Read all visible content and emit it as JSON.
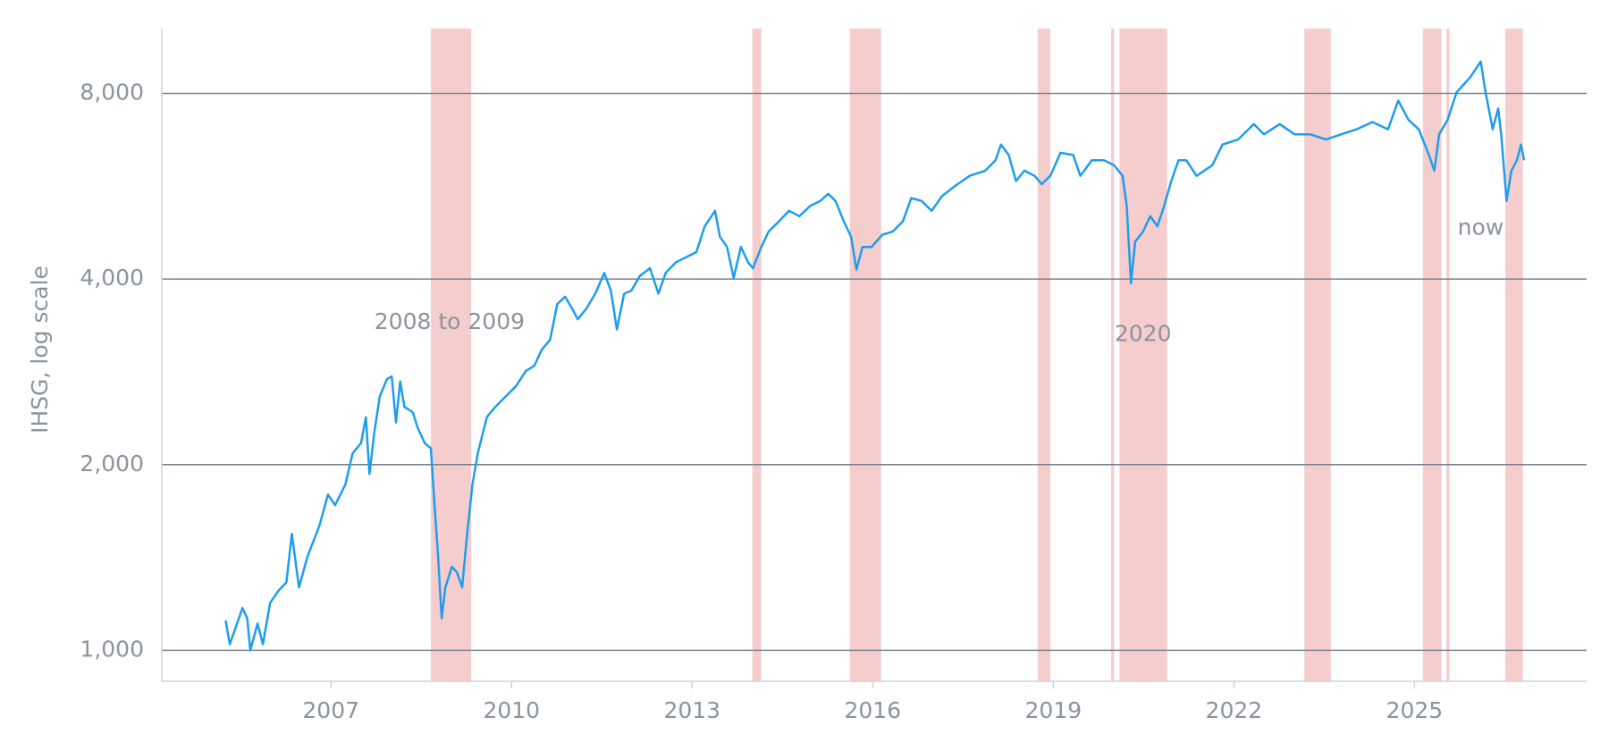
{
  "chart_data": {
    "type": "line",
    "ylabel": "IHSG, log scale",
    "log_y": true,
    "grid": true,
    "xlim": [
      2004.19,
      2027.86
    ],
    "ylim": [
      891,
      10190
    ],
    "xticks": [
      2007,
      2010,
      2013,
      2016,
      2019,
      2022,
      2025
    ],
    "yticks": [
      {
        "value": 1000,
        "label": "1,000"
      },
      {
        "value": 2000,
        "label": "2,000"
      },
      {
        "value": 4000,
        "label": "4,000"
      },
      {
        "value": 8000,
        "label": "8,000"
      }
    ],
    "shade_color": "#f6cdcd",
    "shaded": [
      [
        2008.66,
        2009.33
      ],
      [
        2014.0,
        2014.15
      ],
      [
        2015.62,
        2016.14
      ],
      [
        2018.74,
        2018.95
      ],
      [
        2019.96,
        2020.01
      ],
      [
        2020.1,
        2020.89
      ],
      [
        2023.17,
        2023.61
      ],
      [
        2025.14,
        2025.45
      ],
      [
        2025.53,
        2025.58
      ],
      [
        2026.51,
        2026.8
      ]
    ],
    "annotations": [
      {
        "text": "2008 to 2009",
        "x": 2008.97,
        "y": 3400
      },
      {
        "text": "2020",
        "x": 2020.49,
        "y": 3249
      },
      {
        "text": "now",
        "x": 2026.1,
        "y": 4830
      }
    ],
    "x": [
      2005.25,
      2005.32,
      2005.53,
      2005.61,
      2005.66,
      2005.78,
      2005.87,
      2005.99,
      2006.13,
      2006.26,
      2006.35,
      2006.47,
      2006.61,
      2006.81,
      2006.95,
      2007.07,
      2007.24,
      2007.36,
      2007.5,
      2007.58,
      2007.64,
      2007.72,
      2007.81,
      2007.93,
      2008.01,
      2008.08,
      2008.15,
      2008.22,
      2008.36,
      2008.44,
      2008.56,
      2008.66,
      2008.72,
      2008.78,
      2008.84,
      2008.9,
      2009.01,
      2009.09,
      2009.18,
      2009.26,
      2009.35,
      2009.44,
      2009.59,
      2009.73,
      2009.9,
      2010.07,
      2010.24,
      2010.38,
      2010.5,
      2010.64,
      2010.76,
      2010.89,
      2011.01,
      2011.1,
      2011.24,
      2011.39,
      2011.54,
      2011.65,
      2011.75,
      2011.87,
      2011.99,
      2012.13,
      2012.3,
      2012.44,
      2012.56,
      2012.73,
      2012.9,
      2013.07,
      2013.21,
      2013.38,
      2013.46,
      2013.58,
      2013.69,
      2013.81,
      2013.93,
      2014.01,
      2014.15,
      2014.27,
      2014.44,
      2014.61,
      2014.78,
      2014.96,
      2015.13,
      2015.26,
      2015.38,
      2015.52,
      2015.64,
      2015.73,
      2015.83,
      2015.98,
      2016.16,
      2016.33,
      2016.5,
      2016.64,
      2016.81,
      2016.98,
      2017.15,
      2017.36,
      2017.61,
      2017.87,
      2018.04,
      2018.13,
      2018.26,
      2018.38,
      2018.52,
      2018.69,
      2018.81,
      2018.95,
      2019.12,
      2019.33,
      2019.45,
      2019.64,
      2019.84,
      2020.01,
      2020.15,
      2020.22,
      2020.29,
      2020.36,
      2020.49,
      2020.61,
      2020.73,
      2020.84,
      2020.96,
      2021.08,
      2021.21,
      2021.38,
      2021.64,
      2021.81,
      2022.07,
      2022.33,
      2022.5,
      2022.76,
      2023.01,
      2023.27,
      2023.53,
      2023.78,
      2024.04,
      2024.3,
      2024.56,
      2024.73,
      2024.9,
      2025.07,
      2025.24,
      2025.33,
      2025.41,
      2025.55,
      2025.7,
      2025.93,
      2026.1,
      2026.18,
      2026.3,
      2026.39,
      2026.44,
      2026.53,
      2026.61,
      2026.7,
      2026.77,
      2026.82
    ],
    "series": [
      {
        "color": "#1f9ded",
        "values": [
          1118,
          1023,
          1171,
          1127,
          1000,
          1105,
          1023,
          1194,
          1250,
          1289,
          1545,
          1265,
          1420,
          1594,
          1789,
          1720,
          1858,
          2087,
          2168,
          2388,
          1932,
          2253,
          2579,
          2753,
          2782,
          2342,
          2730,
          2482,
          2433,
          2296,
          2167,
          2127,
          1721,
          1420,
          1127,
          1265,
          1366,
          1340,
          1265,
          1534,
          1857,
          2087,
          2390,
          2482,
          2579,
          2679,
          2839,
          2896,
          3071,
          3188,
          3643,
          3745,
          3578,
          3442,
          3578,
          3787,
          4092,
          3830,
          3314,
          3787,
          3830,
          4045,
          4166,
          3787,
          4092,
          4258,
          4340,
          4425,
          4871,
          5160,
          4686,
          4510,
          4015,
          4510,
          4258,
          4166,
          4510,
          4775,
          4960,
          5160,
          5059,
          5254,
          5355,
          5498,
          5355,
          4960,
          4686,
          4143,
          4510,
          4510,
          4720,
          4775,
          4960,
          5411,
          5355,
          5160,
          5451,
          5656,
          5880,
          5996,
          6233,
          6610,
          6355,
          5768,
          5996,
          5880,
          5702,
          5880,
          6409,
          6355,
          5880,
          6233,
          6233,
          6117,
          5880,
          5254,
          3940,
          4600,
          4775,
          5059,
          4871,
          5254,
          5768,
          6233,
          6233,
          5880,
          6117,
          6610,
          6737,
          7134,
          6866,
          7134,
          6866,
          6866,
          6737,
          6866,
          6997,
          7190,
          6997,
          7788,
          7248,
          6997,
          6355,
          5996,
          6866,
          7248,
          8031,
          8506,
          9012,
          8031,
          6997,
          7560,
          6866,
          5355,
          5996,
          6233,
          6610,
          6233
        ]
      }
    ]
  }
}
